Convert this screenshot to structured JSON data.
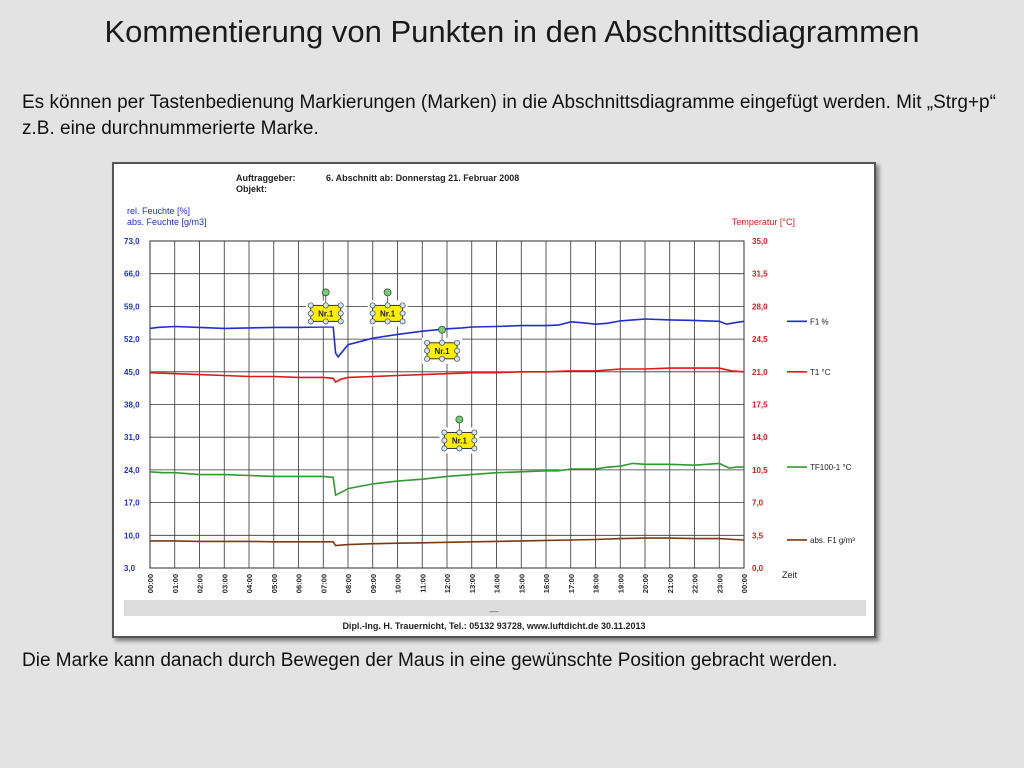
{
  "slide": {
    "title": "Kommentierung von Punkten in den Abschnittsdiagrammen",
    "paragraph1": "Es können per Tastenbedienung Markierungen (Marken) in die Abschnittsdiagramme eingefügt werden. Mit „Strg+p“ z.B. eine durchnummerierte Marke.",
    "paragraph2": "Die Marke kann danach durch Bewegen der Maus in eine gewünschte Position gebracht werden."
  },
  "chart_data": {
    "type": "line",
    "header": {
      "client_label": "Auftraggeber:",
      "object_label": "Objekt:",
      "section": "6. Abschnitt ab: Donnerstag  21. Februar 2008"
    },
    "ylabel_left_1": "rel. Feuchte [%]",
    "ylabel_left_2": "abs. Feuchte [g/m3]",
    "ylabel_right": "Temperatur [°C]",
    "xlabel": "Zeit",
    "left_ticks": [
      "3,0",
      "10,0",
      "17,0",
      "24,0",
      "31,0",
      "38,0",
      "45,0",
      "52,0",
      "59,0",
      "66,0",
      "73,0"
    ],
    "right_ticks": [
      "0,0",
      "3,5",
      "7,0",
      "10,5",
      "14,0",
      "17,5",
      "21,0",
      "24,5",
      "28,0",
      "31,5",
      "35,0"
    ],
    "ylim_left": [
      3,
      73
    ],
    "ylim_right": [
      0,
      35
    ],
    "x_ticks": [
      "00:00",
      "01:00",
      "02:00",
      "03:00",
      "04:00",
      "05:00",
      "06:00",
      "07:00",
      "08:00",
      "09:00",
      "10:00",
      "11:00",
      "12:00",
      "13:00",
      "14:00",
      "15:00",
      "16:00",
      "17:00",
      "18:00",
      "19:00",
      "20:00",
      "21:00",
      "22:00",
      "23:00",
      "00:00"
    ],
    "x_hours": [
      0,
      1,
      2,
      3,
      4,
      5,
      6,
      7,
      8,
      9,
      10,
      11,
      12,
      13,
      14,
      15,
      16,
      17,
      18,
      19,
      20,
      21,
      22,
      23,
      24
    ],
    "xlim": [
      0,
      24
    ],
    "grid": true,
    "legend_position": "right",
    "series": [
      {
        "name": "F1 %",
        "axis": "left",
        "color": "#1f2fcf",
        "x": [
          0,
          0.3,
          1,
          2,
          3,
          4,
          5,
          6,
          7,
          7.4,
          7.5,
          7.6,
          8,
          9,
          10,
          11,
          12,
          12.6,
          13,
          14,
          15,
          16,
          16.5,
          17,
          17.5,
          18,
          18.5,
          19,
          20,
          21,
          22,
          22.5,
          23,
          23.3,
          23.6,
          24
        ],
        "y": [
          54.3,
          54.5,
          54.7,
          54.5,
          54.3,
          54.4,
          54.5,
          54.5,
          54.6,
          54.6,
          49.0,
          48.2,
          50.8,
          52.2,
          53.0,
          53.7,
          54.2,
          54.4,
          54.6,
          54.7,
          54.9,
          54.9,
          55.0,
          55.7,
          55.5,
          55.2,
          55.4,
          55.9,
          56.3,
          56.1,
          56.0,
          55.9,
          55.8,
          55.2,
          55.5,
          55.8
        ]
      },
      {
        "name": "abs. F1 g/m³",
        "axis": "left",
        "color": "#7a3a12",
        "x": [
          0,
          1,
          2,
          3,
          4,
          5,
          6,
          7,
          7.4,
          7.5,
          8,
          9,
          10,
          11,
          12,
          13,
          14,
          15,
          16,
          17,
          18,
          19,
          20,
          21,
          22,
          23,
          23.6,
          24
        ],
        "y": [
          8.8,
          8.8,
          8.7,
          8.7,
          8.7,
          8.6,
          8.6,
          8.6,
          8.6,
          7.8,
          8.0,
          8.2,
          8.3,
          8.4,
          8.5,
          8.6,
          8.7,
          8.8,
          8.9,
          9.0,
          9.1,
          9.3,
          9.4,
          9.4,
          9.3,
          9.3,
          9.1,
          9.0
        ]
      },
      {
        "name": "T1 °C",
        "axis": "right",
        "color": "#e01818",
        "x": [
          0,
          1,
          2,
          3,
          4,
          5,
          6,
          7,
          7.4,
          7.5,
          7.7,
          8,
          9,
          10,
          11,
          12,
          13,
          14,
          15,
          16,
          17,
          18,
          19,
          20,
          21,
          22,
          23,
          23.5,
          24
        ],
        "y": [
          20.9,
          20.8,
          20.7,
          20.6,
          20.5,
          20.5,
          20.4,
          20.4,
          20.3,
          19.9,
          20.2,
          20.4,
          20.5,
          20.6,
          20.7,
          20.8,
          20.9,
          20.9,
          21.0,
          21.0,
          21.1,
          21.1,
          21.3,
          21.3,
          21.4,
          21.4,
          21.4,
          21.1,
          21.0
        ]
      },
      {
        "name": "TF100-1 °C",
        "axis": "right",
        "color": "#2f9a2f",
        "x": [
          0,
          0.5,
          1,
          2,
          3,
          4,
          5,
          6,
          7,
          7.4,
          7.5,
          7.8,
          8,
          9,
          10,
          11,
          12,
          13,
          14,
          15,
          16,
          16.5,
          17,
          17.5,
          18,
          18.5,
          19,
          19.5,
          20,
          21,
          22,
          22.5,
          23,
          23.4,
          23.7,
          24
        ],
        "y": [
          10.3,
          10.2,
          10.2,
          10.0,
          10.0,
          9.9,
          9.8,
          9.8,
          9.8,
          9.7,
          7.8,
          8.2,
          8.5,
          9.0,
          9.3,
          9.5,
          9.8,
          10.0,
          10.2,
          10.3,
          10.4,
          10.4,
          10.6,
          10.6,
          10.6,
          10.8,
          10.9,
          11.2,
          11.1,
          11.1,
          11.0,
          11.1,
          11.2,
          10.7,
          10.8,
          10.8
        ]
      }
    ],
    "markers": [
      {
        "label": "Nr.1",
        "hour": 7.1,
        "value_left": 57.5
      },
      {
        "label": "Nr.1",
        "hour": 9.6,
        "value_left": 57.5
      },
      {
        "label": "Nr.1",
        "hour": 11.8,
        "value_left": 49.5
      },
      {
        "label": "Nr.1",
        "hour": 12.5,
        "value_left": 30.3
      }
    ],
    "footer_mark": "—",
    "footer": "Dipl.-Ing. H. Trauernicht, Tel.: 05132 93728, www.luftdicht.de 30.11.2013",
    "colors": {
      "left_axis_label": "#1f2fcf",
      "right_axis_label": "#e01818"
    }
  }
}
